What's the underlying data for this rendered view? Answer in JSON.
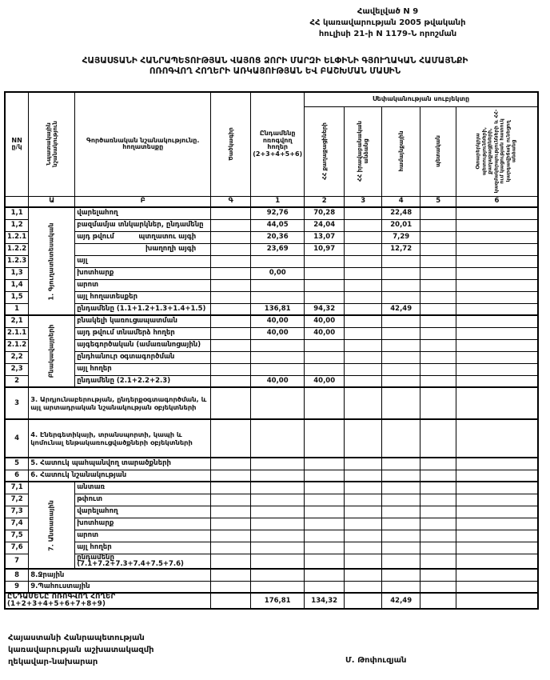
{
  "appendix": {
    "lines": [
      "Հավելված N 9",
      "ՀՀ կառավարության 2005 թվականի",
      "հուլիսի 21-ի N 1179-Ն որոշման"
    ]
  },
  "title": {
    "line1": "ՀԱՅԱՍՏԱՆԻ ՀԱՆՐԱՊԵՏՈՒԹՅԱՆ ՎԱՅՈՑ ՁՈՐԻ ՄԱՐԶԻ ԵԼՓԻՆԻ ԳՅՈՒՂԱԿԱՆ ՀԱՄԱՅՆՔԻ",
    "line2": "ՈՌՈԳՎՈՂ ՀՈՂԵՐԻ ԱՌԿԱՅՈՒԹՅԱՆ ԵՎ ԲԱՇԽՄԱՆ ՄԱՍԻՆ"
  },
  "table": {
    "headers": {
      "nn": "NN ը/կ",
      "purpose": "Նպատակային նշանակություն",
      "functional": "Գործառնական նշանակությունը. հողատեսքը",
      "code": "Ծածկագիր",
      "total_col": "Ընդամենը ոռոգվող հողեր (2+3+4+5+6)",
      "ownership_group": "Սեփականության սուբյեկտը",
      "own_cols": [
        "ՀՀ քաղաքացիների",
        "ՀՀ իրավաբանական անձանց",
        "համայնքային",
        "պետական",
        "Օտարերկրյա պետությունների, քաղաքացիների, կազմակերպությունների և ՀՀ-ում կացության հատուկ կարգավիճակ ունեցող անձանց"
      ],
      "letters": [
        "Ա",
        "Բ",
        "Գ",
        "1",
        "2",
        "3",
        "4",
        "5",
        "6"
      ]
    },
    "rows": [
      {
        "nn": "1,1",
        "label": "վարելահող",
        "cells": [
          "92,76",
          "70,28",
          "",
          "22,48",
          "",
          ""
        ],
        "group": "1. Գյուղատնտեսական",
        "group_span": 9
      },
      {
        "nn": "1,2",
        "label": "բազմամյա տնկարկներ, ընդամենը",
        "cells": [
          "44,05",
          "24,04",
          "",
          "20,01",
          "",
          ""
        ]
      },
      {
        "nn": "1.2.1",
        "label": "այդ թվում",
        "label2": "պտղատու այգի",
        "cells": [
          "20,36",
          "13,07",
          "",
          "7,29",
          "",
          ""
        ]
      },
      {
        "nn": "1.2.2",
        "label": "",
        "label2": "խաղողի այգի",
        "cells": [
          "23,69",
          "10,97",
          "",
          "12,72",
          "",
          ""
        ]
      },
      {
        "nn": "1.2.3",
        "label": "այլ",
        "cells": [
          "",
          "",
          "",
          "",
          "",
          ""
        ]
      },
      {
        "nn": "1,3",
        "label": "խոտհարք",
        "cells": [
          "0,00",
          "",
          "",
          "",
          "",
          ""
        ]
      },
      {
        "nn": "1,4",
        "label": "արոտ",
        "cells": [
          "",
          "",
          "",
          "",
          "",
          ""
        ]
      },
      {
        "nn": "1,5",
        "label": "այլ հողատեսքեր",
        "cells": [
          "",
          "",
          "",
          "",
          "",
          ""
        ]
      },
      {
        "nn": "1",
        "label": "ընդամենը (1.1+1.2+1.3+1.4+1.5)",
        "cells": [
          "136,81",
          "94,32",
          "",
          "42,49",
          "",
          ""
        ],
        "subtotal": true
      },
      {
        "nn": "2,1",
        "label": "բնակելի կառուցապատման",
        "cells": [
          "40,00",
          "40,00",
          "",
          "",
          "",
          ""
        ],
        "group": "Բնակավայրերի",
        "group_span": 6,
        "section_start": true
      },
      {
        "nn": "2.1.1",
        "label": "այդ թվում տնամերձ հողեր",
        "cells": [
          "40,00",
          "40,00",
          "",
          "",
          "",
          ""
        ]
      },
      {
        "nn": "2.1.2",
        "label": "այգեգործական (ամառանոցային)",
        "cells": [
          "",
          "",
          "",
          "",
          "",
          ""
        ]
      },
      {
        "nn": "2,2",
        "label": "ընդհանուր օգտագործման",
        "cells": [
          "",
          "",
          "",
          "",
          "",
          ""
        ]
      },
      {
        "nn": "2,3",
        "label": "այլ հողեր",
        "cells": [
          "",
          "",
          "",
          "",
          "",
          ""
        ]
      },
      {
        "nn": "2",
        "label": "ընդամենը (2.1+2.2+2.3)",
        "cells": [
          "40,00",
          "40,00",
          "",
          "",
          "",
          ""
        ],
        "subtotal": true
      },
      {
        "nn": "3",
        "label": "3. Արդյունաբերության, ընդերքօգտագործման, և այլ արտադրական նշանակության օբյեկտների",
        "wide": true,
        "height": 40,
        "section_start": true,
        "cells": [
          "",
          "",
          "",
          "",
          "",
          ""
        ]
      },
      {
        "nn": "4",
        "label": "4. Էներգետիկայի, տրանսպորտի, կապի և կոմունալ ենթակառուցվածքների օբյեկտների",
        "wide": true,
        "height": 48,
        "section_start": true,
        "cells": [
          "",
          "",
          "",
          "",
          "",
          ""
        ]
      },
      {
        "nn": "5",
        "label": "5. Հատուկ պահպանվող տարածքների",
        "wide": true,
        "section_start": true,
        "cells": [
          "",
          "",
          "",
          "",
          "",
          ""
        ]
      },
      {
        "nn": "6",
        "label": "6. Հատուկ նշանակության",
        "wide": true,
        "cells": [
          "",
          "",
          "",
          "",
          "",
          ""
        ]
      },
      {
        "nn": "7,1",
        "label": "անտառ",
        "cells": [
          "",
          "",
          "",
          "",
          "",
          ""
        ],
        "group": "7. Անտառային",
        "group_span": 7,
        "section_start": true
      },
      {
        "nn": "7,2",
        "label": "թփուտ",
        "cells": [
          "",
          "",
          "",
          "",
          "",
          ""
        ]
      },
      {
        "nn": "7,3",
        "label": "վարելահող",
        "cells": [
          "",
          "",
          "",
          "",
          "",
          ""
        ]
      },
      {
        "nn": "7,4",
        "label": "խոտհարք",
        "cells": [
          "",
          "",
          "",
          "",
          "",
          ""
        ]
      },
      {
        "nn": "7,5",
        "label": "արոտ",
        "cells": [
          "",
          "",
          "",
          "",
          "",
          ""
        ]
      },
      {
        "nn": "7,6",
        "label": "այլ հողեր",
        "cells": [
          "",
          "",
          "",
          "",
          "",
          ""
        ]
      },
      {
        "nn": "7",
        "label": "ընդամենը (7.1+7.2+7.3+7.4+7.5+7.6)",
        "cells": [
          "",
          "",
          "",
          "",
          "",
          ""
        ],
        "subtotal": true
      },
      {
        "nn": "8",
        "label": "8.Ջրային",
        "wide": true,
        "section_start": true,
        "cells": [
          "",
          "",
          "",
          "",
          "",
          ""
        ]
      },
      {
        "nn": "9",
        "label": "9.Պահուստային",
        "wide": true,
        "cells": [
          "",
          "",
          "",
          "",
          "",
          ""
        ]
      }
    ],
    "total_row": {
      "label": "ԸՆԴԱՄԵՆԸ ՈՌՈԳՎՈՂ ՀՈՂԵՐ (1+2+3+4+5+6+7+8+9)",
      "cells": [
        "176,81",
        "134,32",
        "",
        "42,49",
        "",
        ""
      ]
    }
  },
  "footer": {
    "left_lines": [
      "Հայաստանի Հանրապետության",
      "կառավարության աշխատակազմի",
      "ղեկավար-նախարար"
    ],
    "signature": "Մ. Թոփուզյան"
  }
}
